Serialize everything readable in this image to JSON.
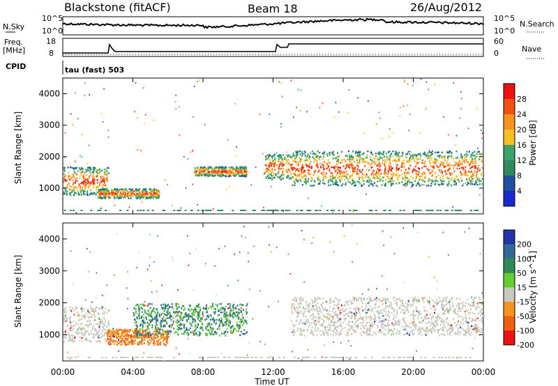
{
  "header": {
    "station": "Blackstone (fitACF)",
    "beam": "Beam 18",
    "date": "26/Aug/2012"
  },
  "noise_panel": {
    "left_label": "N.Sky",
    "left_top_tick": "10^5",
    "left_bottom_tick": "10^0",
    "right_top_tick": "10^5",
    "right_bottom_tick": "10^0",
    "right_label": "N.Search"
  },
  "freq_panel": {
    "label_line1": "Freq.",
    "label_line2": "[MHz]",
    "left_ticks": [
      "18",
      "8"
    ],
    "right_ticks": [
      "60",
      "0"
    ],
    "right_label": "Nave"
  },
  "cpid": {
    "label": "CPID",
    "mode": "tau (fast) 503"
  },
  "chart_data": [
    {
      "type": "heatmap",
      "title": "",
      "quantity": "Power",
      "ylabel": "Slant Range [km]",
      "colorbar_label": "Power [dB]",
      "colorbar_ticks": [
        "28",
        "24",
        "20",
        "16",
        "12",
        "8",
        "4"
      ],
      "colorbar_colors": [
        "#ee1111",
        "#f05010",
        "#f7941e",
        "#f8c020",
        "#3aa36a",
        "#2f8a5f",
        "#1e4fa0",
        "#1a2ad0"
      ],
      "ylim": [
        180,
        4500
      ],
      "y_ticks": [
        "1000",
        "2000",
        "3000",
        "4000"
      ],
      "features": [
        {
          "t_start": 0.0,
          "t_end": 2.6,
          "range_km": [
            800,
            1700
          ],
          "power_db": "4-28"
        },
        {
          "t_start": 2.0,
          "t_end": 5.5,
          "range_km": [
            700,
            1000
          ],
          "power_db": "12-28"
        },
        {
          "t_start": 7.5,
          "t_end": 10.5,
          "range_km": [
            1400,
            1700
          ],
          "power_db": "20-28"
        },
        {
          "t_start": 11.5,
          "t_end": 13.0,
          "range_km": [
            1300,
            2100
          ],
          "power_db": "16-28"
        },
        {
          "t_start": 13.0,
          "t_end": 24.0,
          "range_km": [
            1100,
            2200
          ],
          "power_db": "12-28"
        }
      ]
    },
    {
      "type": "heatmap",
      "title": "",
      "quantity": "Velocity",
      "ylabel": "Slant Range [km]",
      "colorbar_label": "Velocity [m s^-1]",
      "colorbar_ticks": [
        "200",
        "100",
        "50",
        "15",
        "-15",
        "-50",
        "-100",
        "-200"
      ],
      "colorbar_colors": [
        "#2233aa",
        "#2f6a9a",
        "#2e8b57",
        "#66cc33",
        "#c8c8c0",
        "#f7941e",
        "#f06010",
        "#ee1111"
      ],
      "ylim": [
        180,
        4500
      ],
      "y_ticks": [
        "1000",
        "2000",
        "3000",
        "4000"
      ],
      "xlabel": "Time UT",
      "x_ticks": [
        "00:00",
        "04:00",
        "08:00",
        "12:00",
        "16:00",
        "20:00",
        "00:00"
      ],
      "xlim_hours": [
        0,
        24
      ],
      "features": [
        {
          "t_start": 0.0,
          "t_end": 2.6,
          "range_km": [
            800,
            1900
          ],
          "velocity": "-15 to 15"
        },
        {
          "t_start": 2.5,
          "t_end": 6.0,
          "range_km": [
            700,
            1200
          ],
          "velocity": "-100 to -50"
        },
        {
          "t_start": 4.0,
          "t_end": 10.5,
          "range_km": [
            1000,
            2000
          ],
          "velocity": "15 to 100"
        },
        {
          "t_start": 13.0,
          "t_end": 24.0,
          "range_km": [
            1000,
            2200
          ],
          "velocity": "-15 to 15"
        }
      ]
    }
  ]
}
